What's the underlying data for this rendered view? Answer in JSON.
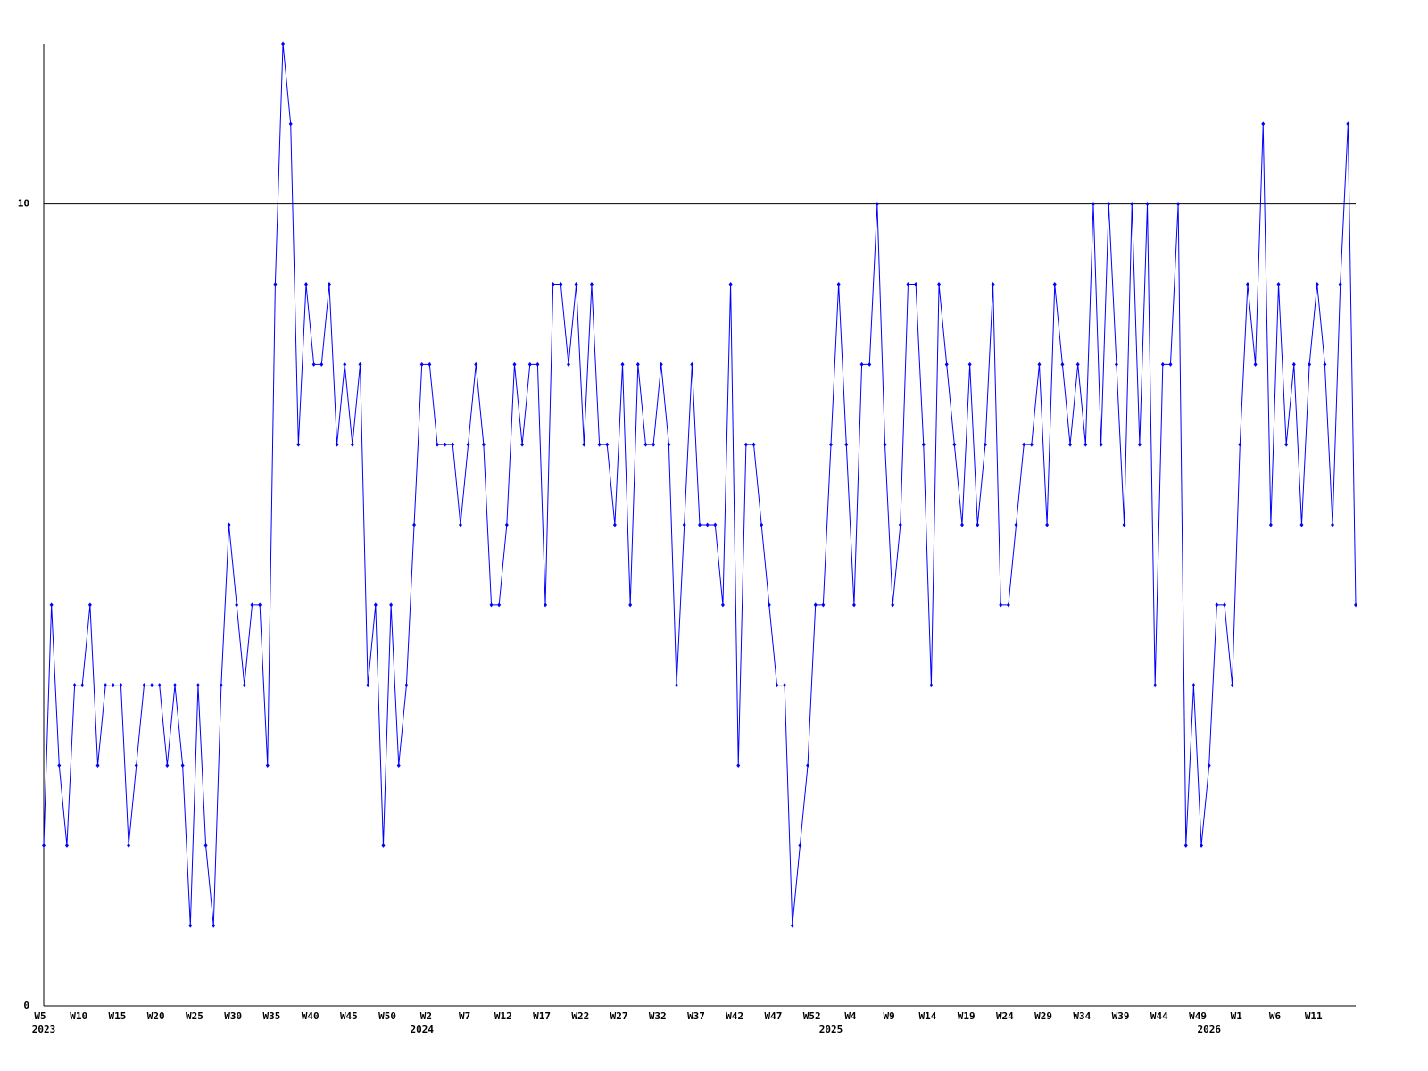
{
  "chart_data": {
    "type": "line",
    "categories": [
      "W5",
      null,
      null,
      null,
      null,
      "W10",
      null,
      null,
      null,
      null,
      "W15",
      null,
      null,
      null,
      null,
      "W20",
      null,
      null,
      null,
      null,
      "W25",
      null,
      null,
      null,
      null,
      "W30",
      null,
      null,
      null,
      null,
      "W35",
      null,
      null,
      null,
      null,
      "W40",
      null,
      null,
      null,
      null,
      "W45",
      null,
      null,
      null,
      null,
      "W50",
      null,
      null,
      null,
      null,
      "W2",
      null,
      null,
      null,
      null,
      "W7",
      null,
      null,
      null,
      null,
      "W12",
      null,
      null,
      null,
      null,
      "W17",
      null,
      null,
      null,
      null,
      "W22",
      null,
      null,
      null,
      null,
      "W27",
      null,
      null,
      null,
      null,
      "W32",
      null,
      null,
      null,
      null,
      "W37",
      null,
      null,
      null,
      null,
      "W42",
      null,
      null,
      null,
      null,
      "W47",
      null,
      null,
      null,
      null,
      "W52",
      null,
      null,
      null,
      null,
      "W4",
      null,
      null,
      null,
      null,
      "W9",
      null,
      null,
      null,
      null,
      "W14",
      null,
      null,
      null,
      null,
      "W19",
      null,
      null,
      null,
      null,
      "W24",
      null,
      null,
      null,
      null,
      "W29",
      null,
      null,
      null,
      null,
      "W34",
      null,
      null,
      null,
      null,
      "W39",
      null,
      null,
      null,
      null,
      "W44",
      null,
      null,
      null,
      null,
      "W49",
      null,
      null,
      null,
      null,
      "W1",
      null,
      null,
      null,
      null,
      "W6",
      null,
      null,
      null,
      null,
      "W11",
      null,
      null,
      null,
      null,
      null
    ],
    "category_years": [
      "2023",
      null,
      null,
      null,
      null,
      null,
      null,
      null,
      null,
      null,
      null,
      null,
      null,
      null,
      null,
      null,
      null,
      null,
      null,
      null,
      null,
      null,
      null,
      null,
      null,
      null,
      null,
      null,
      null,
      null,
      null,
      null,
      null,
      null,
      null,
      null,
      null,
      null,
      null,
      null,
      null,
      null,
      null,
      null,
      null,
      null,
      null,
      null,
      null,
      "2024",
      null,
      null,
      null,
      null,
      null,
      null,
      null,
      null,
      null,
      null,
      null,
      null,
      null,
      null,
      null,
      null,
      null,
      null,
      null,
      null,
      null,
      null,
      null,
      null,
      null,
      null,
      null,
      null,
      null,
      null,
      null,
      null,
      null,
      null,
      null,
      null,
      null,
      null,
      null,
      null,
      null,
      null,
      null,
      null,
      null,
      null,
      null,
      null,
      null,
      null,
      null,
      null,
      "2025",
      null,
      null,
      null,
      null,
      null,
      null,
      null,
      null,
      null,
      null,
      null,
      null,
      null,
      null,
      null,
      null,
      null,
      null,
      null,
      null,
      null,
      null,
      null,
      null,
      null,
      null,
      null,
      null,
      null,
      null,
      null,
      null,
      null,
      null,
      null,
      null,
      null,
      null,
      null,
      null,
      null,
      null,
      null,
      null,
      null,
      null,
      null,
      null,
      "2026",
      null,
      null,
      null,
      null,
      null,
      null,
      null,
      null,
      null,
      null,
      null,
      null,
      null,
      null,
      null
    ],
    "series": [
      {
        "color": "#0000ff",
        "values": [
          2,
          5,
          3,
          2,
          4,
          4,
          5,
          3,
          4,
          4,
          4,
          2,
          3,
          4,
          4,
          4,
          3,
          4,
          3,
          1,
          4,
          2,
          1,
          4,
          6,
          5,
          4,
          5,
          5,
          3,
          9,
          12,
          11,
          7,
          9,
          8,
          8,
          9,
          7,
          8,
          7,
          8,
          4,
          5,
          2,
          5,
          3,
          4,
          6,
          8,
          8,
          7,
          7,
          7,
          6,
          7,
          8,
          7,
          5,
          5,
          6,
          8,
          7,
          8,
          8,
          5,
          9,
          9,
          8,
          9,
          7,
          9,
          7,
          7,
          6,
          8,
          5,
          8,
          7,
          7,
          8,
          7,
          4,
          6,
          8,
          6,
          6,
          6,
          5,
          9,
          3,
          7,
          7,
          6,
          5,
          4,
          4,
          1,
          2,
          3,
          5,
          5,
          7,
          9,
          7,
          5,
          8,
          8,
          10,
          7,
          5,
          6,
          9,
          9,
          7,
          4,
          9,
          8,
          7,
          6,
          8,
          6,
          7,
          9,
          5,
          5,
          6,
          7,
          7,
          8,
          6,
          9,
          8,
          7,
          8,
          7,
          10,
          7,
          10,
          8,
          6,
          10,
          7,
          10,
          4,
          8,
          8,
          10,
          2,
          4,
          2,
          3,
          5,
          5,
          4,
          7,
          9,
          8,
          11,
          6,
          9,
          7,
          8,
          6,
          8,
          9,
          8,
          6,
          9,
          11,
          5
        ]
      }
    ],
    "ylim": [
      0,
      12
    ],
    "yticks": [
      0,
      10
    ],
    "grid": true
  }
}
